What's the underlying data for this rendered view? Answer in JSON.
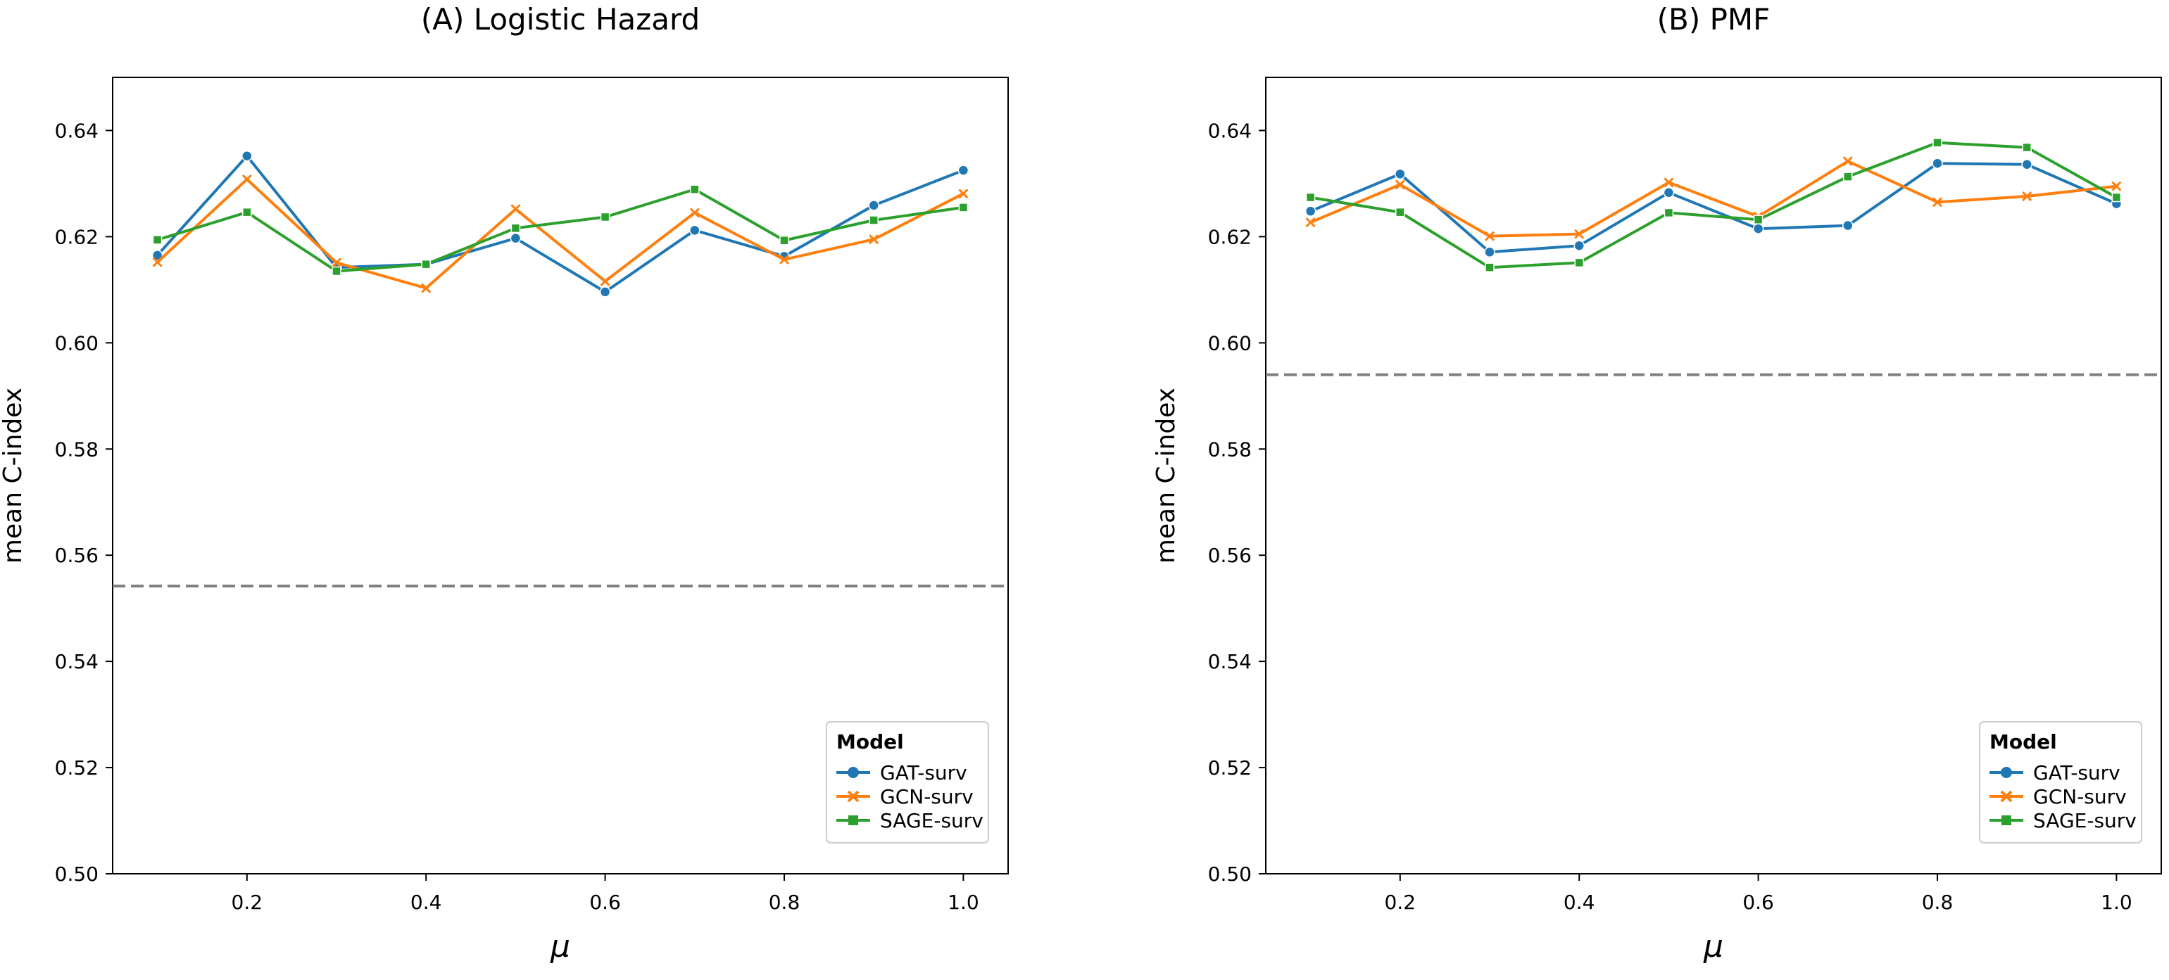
{
  "chart_data": [
    {
      "type": "line",
      "title": "(A) Logistic Hazard",
      "xlabel": "μ",
      "ylabel": "mean  C-index",
      "xlim": [
        0.05,
        1.05
      ],
      "ylim": [
        0.5,
        0.65
      ],
      "xticks": [
        "0.2",
        "0.4",
        "0.6",
        "0.8",
        "1.0"
      ],
      "yticks": [
        "0.50",
        "0.52",
        "0.54",
        "0.56",
        "0.58",
        "0.60",
        "0.62",
        "0.64"
      ],
      "x": [
        0.1,
        0.2,
        0.3,
        0.4,
        0.5,
        0.6,
        0.7,
        0.8,
        0.9,
        1.0
      ],
      "series": [
        {
          "name": "GAT-surv",
          "color": "#1f77b4",
          "marker": "circle",
          "values": [
            0.6165,
            0.6352,
            0.6142,
            0.6148,
            0.6197,
            0.6096,
            0.6212,
            0.6163,
            0.6259,
            0.6325
          ]
        },
        {
          "name": "GCN-surv",
          "color": "#ff7f0e",
          "marker": "x",
          "values": [
            0.6152,
            0.6308,
            0.6151,
            0.6103,
            0.6252,
            0.6116,
            0.6245,
            0.6157,
            0.6195,
            0.6281
          ]
        },
        {
          "name": "SAGE-surv",
          "color": "#2ca02c",
          "marker": "square",
          "values": [
            0.6194,
            0.6246,
            0.6135,
            0.6148,
            0.6216,
            0.6237,
            0.6289,
            0.6193,
            0.6231,
            0.6255
          ]
        }
      ],
      "hline": {
        "y": 0.5542,
        "color": "#808080",
        "style": "dashed"
      },
      "legend": {
        "title": "Model",
        "position": "bottom-right"
      }
    },
    {
      "type": "line",
      "title": "(B) PMF",
      "xlabel": "μ",
      "ylabel": "mean  C-index",
      "xlim": [
        0.05,
        1.05
      ],
      "ylim": [
        0.5,
        0.65
      ],
      "xticks": [
        "0.2",
        "0.4",
        "0.6",
        "0.8",
        "1.0"
      ],
      "yticks": [
        "0.50",
        "0.52",
        "0.54",
        "0.56",
        "0.58",
        "0.60",
        "0.62",
        "0.64"
      ],
      "x": [
        0.1,
        0.2,
        0.3,
        0.4,
        0.5,
        0.6,
        0.7,
        0.8,
        0.9,
        1.0
      ],
      "series": [
        {
          "name": "GAT-surv",
          "color": "#1f77b4",
          "marker": "circle",
          "values": [
            0.6248,
            0.6318,
            0.6171,
            0.6183,
            0.6283,
            0.6215,
            0.6221,
            0.6338,
            0.6336,
            0.6262
          ]
        },
        {
          "name": "GCN-surv",
          "color": "#ff7f0e",
          "marker": "x",
          "values": [
            0.6227,
            0.6298,
            0.6201,
            0.6205,
            0.6302,
            0.6238,
            0.6342,
            0.6265,
            0.6276,
            0.6295
          ]
        },
        {
          "name": "SAGE-surv",
          "color": "#2ca02c",
          "marker": "square",
          "values": [
            0.6274,
            0.6246,
            0.6142,
            0.6151,
            0.6245,
            0.6232,
            0.6313,
            0.6377,
            0.6368,
            0.6274
          ]
        }
      ],
      "hline": {
        "y": 0.594,
        "color": "#808080",
        "style": "dashed"
      },
      "legend": {
        "title": "Model",
        "position": "bottom-right"
      }
    }
  ]
}
